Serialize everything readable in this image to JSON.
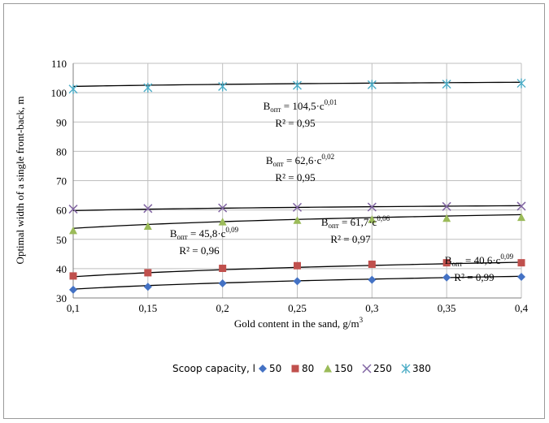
{
  "chart_data": {
    "type": "scatter",
    "xlabel": "Gold content in the sand, g/m",
    "xlabel_sup": "3",
    "ylabel": "Optimal width of a single front-back, m",
    "x": [
      0.1,
      0.15,
      0.2,
      0.25,
      0.3,
      0.35,
      0.4
    ],
    "x_tick_labels": [
      "0,1",
      "0,15",
      "0,2",
      "0,25",
      "0,3",
      "0,35",
      "0,4"
    ],
    "ylim": [
      30,
      110
    ],
    "y_ticks": [
      30,
      40,
      50,
      60,
      70,
      80,
      90,
      100,
      110
    ],
    "grid": true,
    "legend": {
      "position": "bottom",
      "title": "Scoop capacity, l",
      "entries": [
        "50",
        "80",
        "150",
        "250",
        "380"
      ]
    },
    "series": [
      {
        "name": "50",
        "marker": "diamond",
        "color": "#4472C4",
        "values": [
          32.8,
          33.8,
          35.0,
          35.7,
          36.2,
          37.0,
          37.2
        ]
      },
      {
        "name": "80",
        "marker": "square",
        "color": "#C0504D",
        "values": [
          37.5,
          38.6,
          40.1,
          41.0,
          41.5,
          42.0,
          42.0
        ]
      },
      {
        "name": "150",
        "marker": "triangle",
        "color": "#9BBB59",
        "values": [
          53.0,
          54.5,
          56.0,
          56.5,
          56.8,
          57.2,
          57.5
        ]
      },
      {
        "name": "250",
        "marker": "x",
        "color": "#8064A2",
        "values": [
          60.3,
          60.5,
          60.7,
          60.9,
          61.0,
          61.2,
          61.3
        ]
      },
      {
        "name": "380",
        "marker": "asterisk",
        "color": "#4BACC6",
        "values": [
          101.2,
          101.7,
          102.1,
          102.5,
          102.7,
          102.9,
          103.2
        ]
      }
    ],
    "trendlines": [
      {
        "a": 40.6,
        "b": 0.09
      },
      {
        "a": 45.8,
        "b": 0.09
      },
      {
        "a": 61.7,
        "b": 0.06
      },
      {
        "a": 62.6,
        "b": 0.02
      },
      {
        "a": 104.5,
        "b": 0.01
      }
    ],
    "annotations": [
      {
        "main": "B",
        "sub": "опт",
        "mid": " = 104,5·c",
        "sup": "0,01",
        "r2": "R² = 0,95"
      },
      {
        "main": "B",
        "sub": "опт",
        "mid": " = 62,6·c",
        "sup": "0,02",
        "r2": "R² = 0,95"
      },
      {
        "main": "B",
        "sub": "опт",
        "mid": " = 61,7·c",
        "sup": "0,06",
        "r2": "R² = 0,97"
      },
      {
        "main": "B",
        "sub": "опт",
        "mid": " = 45,8·c",
        "sup": "0,09",
        "r2": "R² = 0,96"
      },
      {
        "main": "B",
        "sub": "опт",
        "mid": " = 40,6·c",
        "sup": "0,09",
        "r2": "R² = 0,99"
      }
    ]
  }
}
